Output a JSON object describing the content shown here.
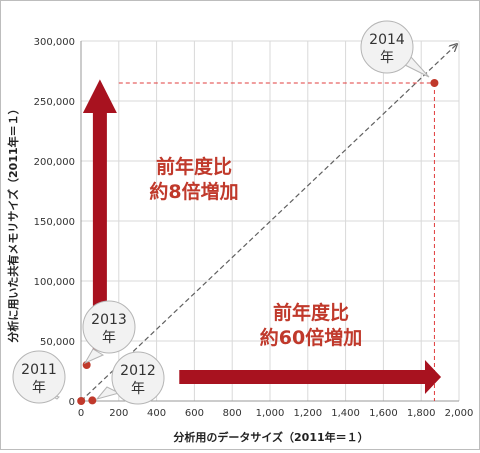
{
  "chart_data": {
    "type": "scatter",
    "xlabel": "分析用のデータサイズ（2011年＝１）",
    "ylabel": "分析に用いた共有メモリサイズ（2011年＝１）",
    "xlim": [
      0,
      2000
    ],
    "ylim": [
      0,
      300000
    ],
    "x_ticks": [
      "0",
      "200",
      "400",
      "600",
      "800",
      "1,000",
      "1,200",
      "1,400",
      "1,600",
      "1,800",
      "2,000"
    ],
    "y_ticks": [
      "0",
      "50,000",
      "100,000",
      "150,000",
      "200,000",
      "250,000",
      "300,000"
    ],
    "grid": true,
    "points": [
      {
        "x": 1,
        "y": 1,
        "label": "2011\n年"
      },
      {
        "x": 60,
        "y": 500,
        "label": "2012\n年"
      },
      {
        "x": 30,
        "y": 30000,
        "label": "2013\n年"
      },
      {
        "x": 1870,
        "y": 265000,
        "label": "2014\n年"
      }
    ],
    "annotations": [
      {
        "text": "前年度比\n約8倍増加",
        "direction": "up"
      },
      {
        "text": "前年度比\n約60倍増加",
        "direction": "right"
      }
    ],
    "colors": {
      "marker": "#c0392b",
      "arrow": "#a8121f",
      "label_text": "#c0392b",
      "callout_bg": "#f2f2f2",
      "guide": "#e03c3c",
      "diagonal": "#606060"
    }
  }
}
